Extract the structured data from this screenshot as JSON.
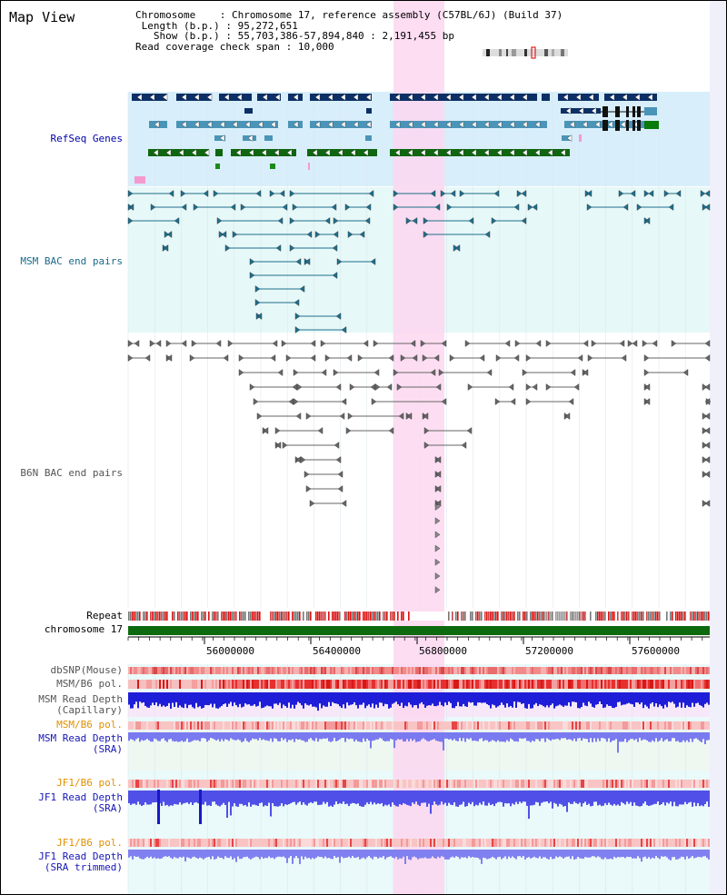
{
  "title": "Map View",
  "info": {
    "chromosome_label": "Chromosome",
    "chromosome_value": "Chromosome 17, reference assembly (C57BL/6J) (Build 37)",
    "length_label": "Length (b.p.)",
    "length_value": "95,272,651",
    "show_label": "Show (b.p.)",
    "show_value": "55,703,386-57,894,840 : 2,191,455 bp",
    "coverage_label": "Read coverage check span",
    "coverage_value": "10,000"
  },
  "tracks": {
    "refseq": "RefSeq Genes",
    "msm_bac": "MSM BAC end pairs",
    "b6n_bac": "B6N BAC end pairs",
    "repeat": "Repeat",
    "chromosome": "chromosome 17",
    "dbsnp": "dbSNP(Mouse)",
    "msm_b6_pol": "MSM/B6 pol.",
    "msm_read_depth_cap_1": "MSM Read Depth",
    "msm_read_depth_cap_2": "(Capillary)",
    "msm_b6_pol_2": "MSM/B6 pol.",
    "msm_read_depth_sra_1": "MSM Read Depth",
    "msm_read_depth_sra_2": "(SRA)",
    "jf1_b6_pol": "JF1/B6 pol.",
    "jf1_read_depth_sra_1": "JF1 Read Depth",
    "jf1_read_depth_sra_2": "(SRA)",
    "jf1_b6_pol_2": "JF1/B6 pol.",
    "jf1_read_depth_trim_1": "JF1 Read Depth",
    "jf1_read_depth_trim_2": "(SRA trimmed)"
  },
  "axis": {
    "ticks": [
      "56000000",
      "56400000",
      "56800000",
      "57200000",
      "57600000"
    ]
  },
  "colors": {
    "highlight": "#fbd7f0",
    "refseq_bg": "#d8eefa",
    "bac_bg": "#e6f8f8",
    "navy": "#0c2f66",
    "steel": "#4a94b8",
    "green": "#106610",
    "teal": "#1e6e8c",
    "gray": "#666666",
    "red": "#e02020",
    "blue": "#2020e0"
  }
}
